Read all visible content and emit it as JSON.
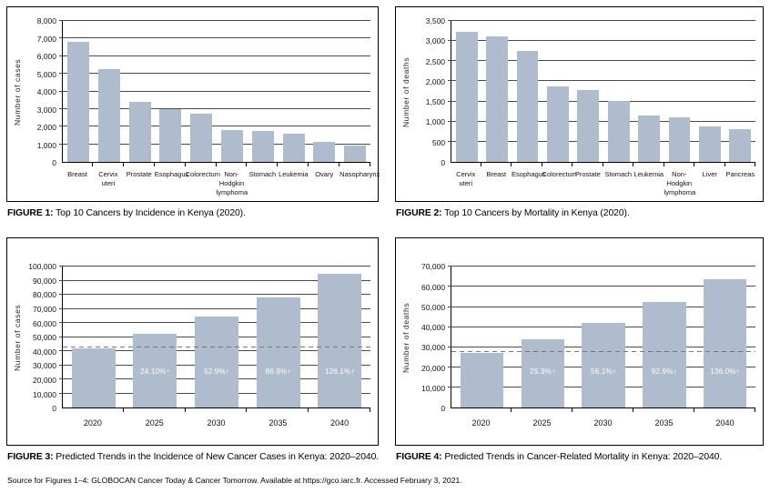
{
  "colors": {
    "bar_fill": "#aebcce",
    "gridline": "#4a4a4a",
    "axis": "#000000",
    "dashed_baseline": "#777777",
    "bar_label_text": "#ffffff",
    "panel_border": "#000000"
  },
  "chart_data": [
    {
      "id": "incidence-by-site",
      "type": "bar",
      "caption_label": "FIGURE 1:",
      "caption_text": " Top 10 Cancers by Incidence in Kenya (2020).",
      "xlabel": "",
      "ylabel": "Number of cases",
      "ylim": [
        0,
        8000
      ],
      "ytick_step": 1000,
      "grid": true,
      "categories": [
        "Breast",
        "Cervix uteri",
        "Prostate",
        "Esophagus",
        "Colorectum",
        "Non-Hodgkin lymphoma",
        "Stomach",
        "Leukemia",
        "Ovary",
        "Nasopharynx"
      ],
      "values": [
        6800,
        5250,
        3400,
        3000,
        2750,
        1800,
        1780,
        1600,
        1120,
        940
      ]
    },
    {
      "id": "mortality-by-site",
      "type": "bar",
      "caption_label": "FIGURE 2:",
      "caption_text": " Top 10 Cancers by Mortality in Kenya (2020).",
      "xlabel": "",
      "ylabel": "Number of deaths",
      "ylim": [
        0,
        3500
      ],
      "ytick_step": 500,
      "grid": true,
      "categories": [
        "Cervix uteri",
        "Breast",
        "Esophagus",
        "Colorectum",
        "Prostate",
        "Stomach",
        "Leukemia",
        "Non-Hodgkin lymphoma",
        "Liver",
        "Pancreas"
      ],
      "values": [
        3220,
        3110,
        2760,
        1870,
        1790,
        1510,
        1160,
        1100,
        870,
        810
      ]
    },
    {
      "id": "incidence-trend",
      "type": "bar",
      "caption_label": "FIGURE 3:",
      "caption_text": " Predicted Trends in the Incidence of New Cancer Cases in Kenya: 2020–2040.",
      "xlabel": "",
      "ylabel": "Number of cases",
      "ylim": [
        0,
        100000
      ],
      "ytick_step": 10000,
      "grid": true,
      "categories": [
        "2020",
        "2025",
        "2030",
        "2035",
        "2040"
      ],
      "values": [
        42000,
        52300,
        64400,
        78500,
        95300
      ],
      "bar_labels": [
        "",
        "24.10%↑",
        "52.9%↑",
        "86.9%↑",
        "126.1%↑"
      ],
      "baseline_dashed_at": 42000
    },
    {
      "id": "mortality-trend",
      "type": "bar",
      "caption_label": "FIGURE 4:",
      "caption_text": " Predicted Trends in Cancer-Related Mortality in Kenya: 2020–2040.",
      "xlabel": "",
      "ylabel": "Number of deaths",
      "ylim": [
        0,
        70000
      ],
      "ytick_step": 10000,
      "grid": true,
      "categories": [
        "2020",
        "2025",
        "2030",
        "2035",
        "2040"
      ],
      "values": [
        27000,
        33900,
        42300,
        52300,
        63900
      ],
      "bar_labels": [
        "",
        "25.3%↑",
        "56.1%↑",
        "92.9%↑",
        "136.0%↑"
      ],
      "baseline_dashed_at": 27000
    }
  ],
  "footer": {
    "source_note": "Source for Figures 1–4: GLOBOCAN Cancer Today & Cancer Tomorrow. Available at https://gco.iarc.fr. Accessed February 3, 2021."
  }
}
